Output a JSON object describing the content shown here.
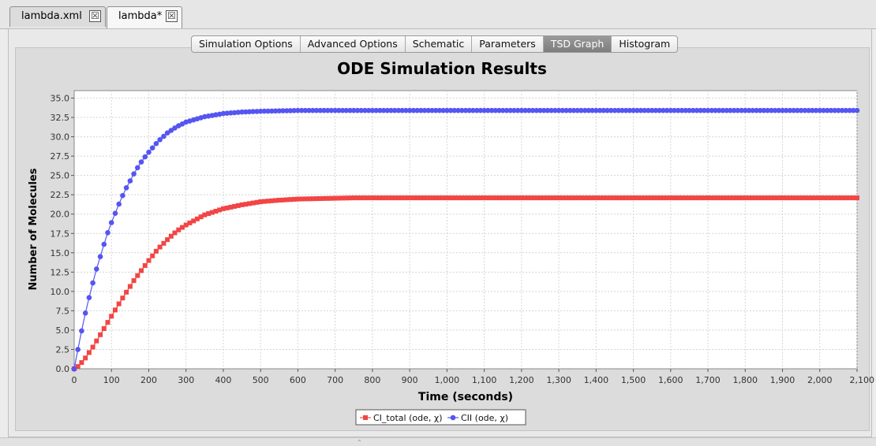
{
  "file_tabs": [
    {
      "label": "lambda.xml",
      "close_glyph": "☒"
    },
    {
      "label": "lambda*",
      "close_glyph": "☒"
    }
  ],
  "view_tabs": [
    "Simulation Options",
    "Advanced Options",
    "Schematic",
    "Parameters",
    "TSD Graph",
    "Histogram"
  ],
  "active_view_tab": "TSD Graph",
  "chart_data": {
    "type": "line",
    "title": "ODE Simulation Results",
    "xlabel": "Time (seconds)",
    "ylabel": "Number of Molecules",
    "xlim": [
      0,
      2100
    ],
    "ylim": [
      0,
      36
    ],
    "x_ticks": [
      "0",
      "100",
      "200",
      "300",
      "400",
      "500",
      "600",
      "700",
      "800",
      "900",
      "1,000",
      "1,100",
      "1,200",
      "1,300",
      "1,400",
      "1,500",
      "1,600",
      "1,700",
      "1,800",
      "1,900",
      "2,000",
      "2,100"
    ],
    "y_ticks": [
      "0.0",
      "2.5",
      "5.0",
      "7.5",
      "10.0",
      "12.5",
      "15.0",
      "17.5",
      "20.0",
      "22.5",
      "25.0",
      "27.5",
      "30.0",
      "32.5",
      "35.0"
    ],
    "grid": true,
    "legend_position": "bottom-center",
    "series": [
      {
        "name": "CI_total (ode, χ)",
        "color": "#f24545",
        "marker": "square",
        "x": [
          0,
          10,
          20,
          30,
          40,
          50,
          60,
          70,
          80,
          90,
          100,
          120,
          140,
          160,
          180,
          200,
          225,
          250,
          275,
          300,
          350,
          400,
          450,
          500,
          550,
          600,
          650,
          700,
          750,
          800,
          850,
          900,
          1000,
          1100,
          1200,
          1300,
          1400,
          1500,
          1600,
          1700,
          1800,
          1900,
          2000,
          2100
        ],
        "y": [
          0,
          0.3,
          0.8,
          1.4,
          2.1,
          2.8,
          3.6,
          4.4,
          5.2,
          6.0,
          6.8,
          8.4,
          9.9,
          11.4,
          12.7,
          14.0,
          15.5,
          16.7,
          17.8,
          18.6,
          19.9,
          20.7,
          21.2,
          21.6,
          21.8,
          21.95,
          22.0,
          22.05,
          22.1,
          22.1,
          22.1,
          22.1,
          22.1,
          22.1,
          22.1,
          22.1,
          22.1,
          22.1,
          22.1,
          22.1,
          22.1,
          22.1,
          22.1,
          22.1
        ]
      },
      {
        "name": "CII (ode, χ)",
        "color": "#5555f2",
        "marker": "circle",
        "x": [
          0,
          10,
          20,
          30,
          40,
          50,
          60,
          70,
          80,
          90,
          100,
          110,
          120,
          130,
          140,
          150,
          160,
          175,
          190,
          200,
          225,
          250,
          275,
          300,
          350,
          400,
          450,
          500,
          550,
          600,
          650,
          700,
          750,
          800,
          900,
          1000,
          1100,
          1200,
          1300,
          1400,
          1500,
          1600,
          1700,
          1800,
          1900,
          2000,
          2100
        ],
        "y": [
          0,
          2.5,
          4.9,
          7.2,
          9.2,
          11.1,
          12.9,
          14.5,
          16.1,
          17.6,
          18.9,
          20.1,
          21.3,
          22.4,
          23.4,
          24.3,
          25.2,
          26.4,
          27.4,
          28.0,
          29.4,
          30.5,
          31.3,
          31.9,
          32.6,
          33.0,
          33.2,
          33.3,
          33.35,
          33.4,
          33.4,
          33.4,
          33.4,
          33.4,
          33.4,
          33.4,
          33.4,
          33.4,
          33.4,
          33.4,
          33.4,
          33.4,
          33.4,
          33.4,
          33.4,
          33.4,
          33.4
        ]
      }
    ]
  }
}
